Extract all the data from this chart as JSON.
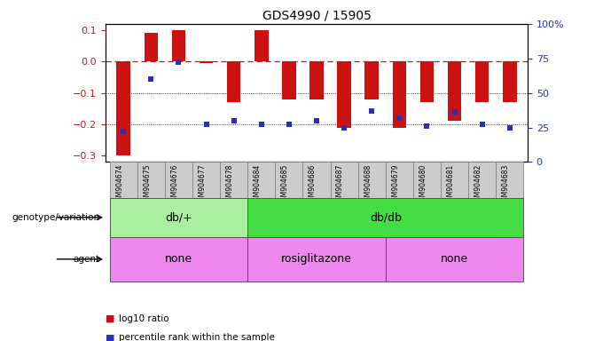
{
  "title": "GDS4990 / 15905",
  "samples": [
    "GSM904674",
    "GSM904675",
    "GSM904676",
    "GSM904677",
    "GSM904678",
    "GSM904684",
    "GSM904685",
    "GSM904686",
    "GSM904687",
    "GSM904688",
    "GSM904679",
    "GSM904680",
    "GSM904681",
    "GSM904682",
    "GSM904683"
  ],
  "log10_ratio": [
    -0.3,
    0.09,
    0.1,
    -0.005,
    -0.13,
    0.1,
    -0.12,
    -0.12,
    -0.21,
    -0.12,
    -0.21,
    -0.13,
    -0.19,
    -0.13,
    -0.13
  ],
  "percentile": [
    22,
    60,
    72,
    27,
    30,
    27,
    27,
    30,
    25,
    37,
    32,
    26,
    36,
    27,
    25
  ],
  "ylim_left": [
    -0.32,
    0.12
  ],
  "ylim_right": [
    0,
    100
  ],
  "bar_color": "#CC1111",
  "dot_color": "#2233BB",
  "dashed_line_color": "#CC1111",
  "left_axis_color": "#CC1111",
  "right_axis_color": "#2233BB",
  "yticks_left": [
    -0.3,
    -0.2,
    -0.1,
    0.0,
    0.1
  ],
  "yticks_right": [
    0,
    25,
    50,
    75,
    100
  ],
  "yticks_right_labels": [
    "0",
    "25",
    "50",
    "75",
    "100%"
  ],
  "genotype_groups": [
    {
      "label": "db/+",
      "start": 0,
      "end": 5,
      "color": "#AAEEA0"
    },
    {
      "label": "db/db",
      "start": 5,
      "end": 15,
      "color": "#44DD44"
    }
  ],
  "agent_groups": [
    {
      "label": "none",
      "start": 0,
      "end": 5,
      "color": "#EE88EE"
    },
    {
      "label": "rosiglitazone",
      "start": 5,
      "end": 10,
      "color": "#EE88EE"
    },
    {
      "label": "none",
      "start": 10,
      "end": 15,
      "color": "#EE88EE"
    }
  ],
  "legend_red_label": "log10 ratio",
  "legend_blue_label": "percentile rank within the sample",
  "sample_box_color": "#CCCCCC",
  "bar_width": 0.5,
  "dot_size": 20
}
